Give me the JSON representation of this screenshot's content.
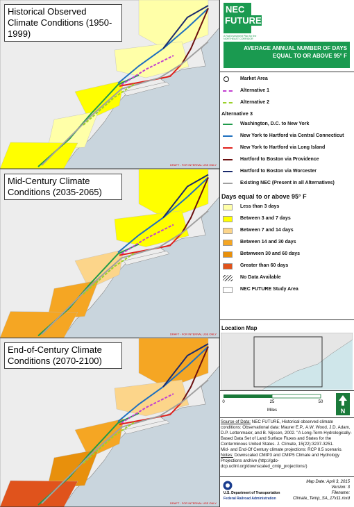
{
  "panels": [
    {
      "title": "Historical Observed Climate Conditions (1950-1999)",
      "draft": "DRAFT - FOR INTERNAL USE ONLY"
    },
    {
      "title": "Mid-Century Climate Conditions (2035-2065)",
      "draft": "DRAFT - FOR INTERNAL USE ONLY"
    },
    {
      "title": "End-of-Century Climate Conditions (2070-2100)",
      "draft": "DRAFT - FOR INTERNAL USE ONLY"
    }
  ],
  "header": {
    "logo_top": "NEC",
    "logo_bottom": "FUTURE",
    "tagline": "A Rail Investment Plan for the NORTHEAST CORRIDOR",
    "title": "AVERAGE ANNUAL NUMBER OF DAYS EQUAL TO OR ABOVE 95° F"
  },
  "legend": {
    "market_area": "Market Area",
    "alternatives": [
      {
        "name": "Alternative 1",
        "color": "#c23fd0"
      },
      {
        "name": "Alternative 2",
        "color": "#9bd12a"
      }
    ],
    "alt3_heading": "Alternative 3",
    "alt3": [
      {
        "name": "Washington, D.C. to New York",
        "color": "#1f9a4a"
      },
      {
        "name": "New York to Hartford via Central Connecticut",
        "color": "#1e6fbf"
      },
      {
        "name": "New York to Hartford via Long Island",
        "color": "#e0201b"
      },
      {
        "name": "Hartford to Boston via Providence",
        "color": "#6b1010"
      },
      {
        "name": "Hartford to Boston via Worcester",
        "color": "#1a2a6c"
      },
      {
        "name": "Existing NEC (Present in all Alternatives)",
        "color": "#a0a0a0"
      }
    ],
    "days_heading": "Days equal to or above 95° F",
    "days": [
      {
        "name": "Less than 3 days",
        "color": "#ffffa8"
      },
      {
        "name": "Between 3 and 7 days",
        "color": "#ffff00"
      },
      {
        "name": "Between 7 and 14 days",
        "color": "#fcd58a"
      },
      {
        "name": "Between 14 and 30 days",
        "color": "#f5a623"
      },
      {
        "name": "Betwween 30 and 60 days",
        "color": "#e8900c"
      },
      {
        "name": "Greater than 60 days",
        "color": "#e0531c"
      }
    ],
    "no_data": "No Data Available",
    "study_area": "NEC FUTURE Study Area"
  },
  "location_map": {
    "title": "Location Map"
  },
  "scale": {
    "ticks": [
      0,
      25,
      50
    ],
    "unit": "Miles",
    "north": "N"
  },
  "source": {
    "label": "Source of Data:",
    "text": " NEC FUTURE, Historical observed climate conditions: Observational data: Maurer E.P., A.W. Wood, J.D. Adam, D.P. Lettenmaier, and B. Nijssen, 2002. \"A Long-Term Hydrologically-Based Data Set of Land Surface Fluxes and States for the Conterminous United States. J. Climate, 15(22):3237-3251.",
    "text2": "Mid- and End-Of Century climate projections: RCP 8.5 scenario.",
    "notes_label": "Notes:",
    "notes": " Downscaled CMIP3 and CMIP5 Climate and Hydrology Projections archive (http://gdo-dcp.ucllnl.org/downscaled_cmip_projections/)"
  },
  "footer": {
    "dot": "U.S. Department of Transportation",
    "fra": "Federal Railroad Administration",
    "date": "Map Date: April 3, 2015",
    "version": "Version: 3",
    "filename_label": "Filename:",
    "filename": "Climate_Temp_SA_17x11.mxd"
  }
}
